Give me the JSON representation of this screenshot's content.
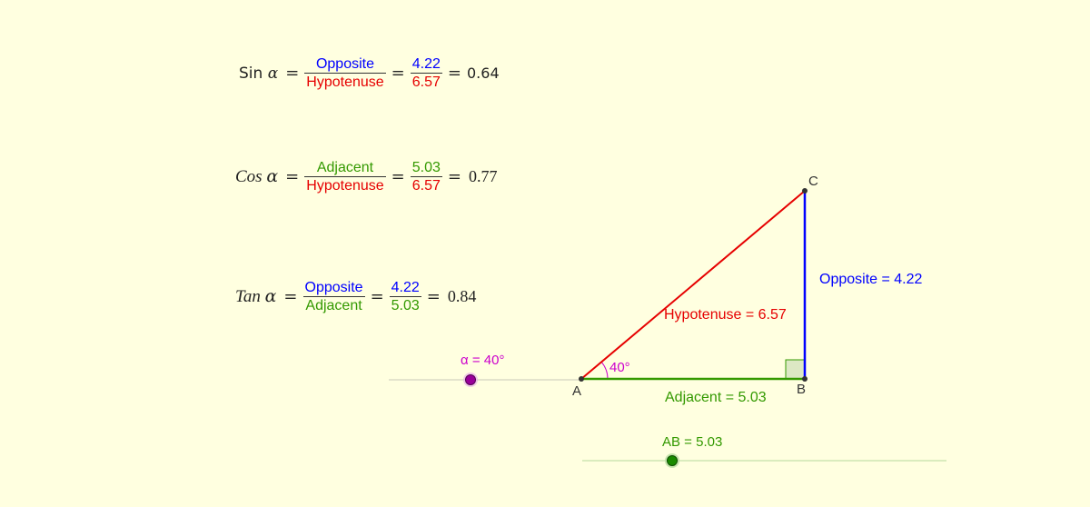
{
  "sin_eq": {
    "lhs": "Sin",
    "alpha": "α",
    "eq": "=",
    "num_label": "Opposite",
    "den_label": "Hypotenuse",
    "num_value": "4.22",
    "den_value": "6.57",
    "result": "0.64"
  },
  "cos_eq": {
    "lhs": "Cos",
    "alpha": "α",
    "eq": "=",
    "num_label": "Adjacent",
    "den_label": "Hypotenuse",
    "num_value": "5.03",
    "den_value": "6.57",
    "result": "0.77"
  },
  "tan_eq": {
    "lhs": "Tan",
    "alpha": "α",
    "eq": "=",
    "num_label": "Opposite",
    "den_label": "Adjacent",
    "num_value": "4.22",
    "den_value": "5.03",
    "result": "0.84"
  },
  "triangle": {
    "vertex_a": "A",
    "vertex_b": "B",
    "vertex_c": "C",
    "hypotenuse_label": "Hypotenuse = 6.57",
    "opposite_label": "Opposite = 4.22",
    "adjacent_label": "Adjacent = 5.03",
    "angle_label": "40°"
  },
  "sliders": {
    "alpha": {
      "label": "α = 40°",
      "value": 40
    },
    "ab": {
      "label": "AB = 5.03",
      "value": 5.03
    }
  },
  "colors": {
    "background": "#ffffe0",
    "opposite": "#0000ff",
    "hypotenuse": "#e60000",
    "adjacent": "#339900",
    "angle": "#cc00cc"
  }
}
